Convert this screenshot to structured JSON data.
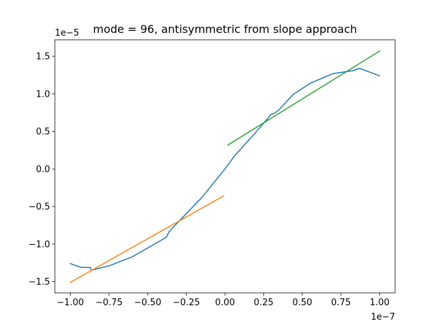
{
  "chart_data": {
    "type": "line",
    "title": "mode = 96, antisymmetric from slope approach",
    "xlabel": "",
    "ylabel": "",
    "x_offset_label": "1e−7",
    "y_offset_label": "1e−5",
    "xlim": [
      -1.1,
      1.1
    ],
    "ylim": [
      -1.65,
      1.72
    ],
    "grid": false,
    "legend": "none",
    "x_ticks": [
      -1.0,
      -0.75,
      -0.5,
      -0.25,
      0.0,
      0.25,
      0.5,
      0.75,
      1.0
    ],
    "x_tick_labels": [
      "−1.00",
      "−0.75",
      "−0.50",
      "−0.25",
      "0.00",
      "0.25",
      "0.50",
      "0.75",
      "1.00"
    ],
    "y_ticks": [
      -1.5,
      -1.0,
      -0.5,
      0.0,
      0.5,
      1.0,
      1.5
    ],
    "y_tick_labels": [
      "−1.5",
      "−1.0",
      "−0.5",
      "0.0",
      "0.5",
      "1.0",
      "1.5"
    ],
    "series": [
      {
        "color": "#1f77b4",
        "points": [
          [
            -1.0,
            -1.26
          ],
          [
            -0.93,
            -1.31
          ],
          [
            -0.87,
            -1.31
          ],
          [
            -0.865,
            -1.35
          ],
          [
            -0.75,
            -1.29
          ],
          [
            -0.6,
            -1.17
          ],
          [
            -0.38,
            -0.91
          ],
          [
            -0.36,
            -0.83
          ],
          [
            -0.15,
            -0.38
          ],
          [
            0.0,
            0.0
          ],
          [
            0.06,
            0.17
          ],
          [
            0.13,
            0.33
          ],
          [
            0.2,
            0.49
          ],
          [
            0.3,
            0.73
          ],
          [
            0.32,
            0.74
          ],
          [
            0.35,
            0.79
          ],
          [
            0.44,
            0.99
          ],
          [
            0.47,
            1.03
          ],
          [
            0.55,
            1.14
          ],
          [
            0.64,
            1.22
          ],
          [
            0.7,
            1.27
          ],
          [
            0.83,
            1.31
          ],
          [
            0.87,
            1.34
          ],
          [
            1.0,
            1.24
          ]
        ]
      },
      {
        "color": "#ff7f0e",
        "points": [
          [
            -1.0,
            -1.51
          ],
          [
            -0.01,
            -0.36
          ]
        ]
      },
      {
        "color": "#2ca02c",
        "points": [
          [
            0.02,
            0.32
          ],
          [
            1.0,
            1.57
          ]
        ]
      }
    ]
  }
}
